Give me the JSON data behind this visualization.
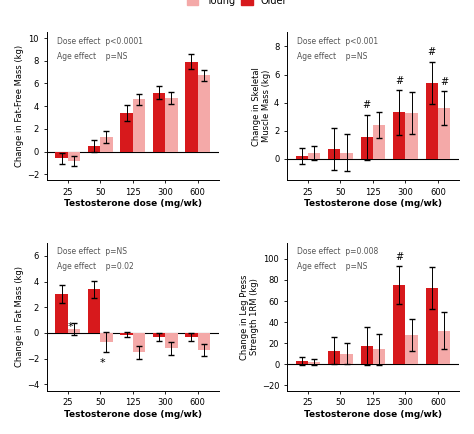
{
  "doses": [
    25,
    50,
    125,
    300,
    600
  ],
  "x_positions": [
    0,
    1,
    2,
    3,
    4
  ],
  "color_older": "#d7191c",
  "color_young": "#f4a9a8",
  "bar_width": 0.38,
  "panel1": {
    "ylabel": "Change in Fat-Free Mass (kg)",
    "xlabel": "Testosterone dose (mg/wk)",
    "ylim": [
      -2.5,
      10.5
    ],
    "yticks": [
      -2,
      0,
      2,
      4,
      6,
      8,
      10
    ],
    "annotation_line1": "Dose effect  p<0.0001",
    "annotation_line2": "Age effect    p=NS",
    "older_means": [
      -0.6,
      0.5,
      3.4,
      5.2,
      7.9
    ],
    "older_errors": [
      0.5,
      0.5,
      0.7,
      0.55,
      0.65
    ],
    "young_means": [
      -0.8,
      1.3,
      4.6,
      4.7,
      6.7
    ],
    "young_errors": [
      0.45,
      0.55,
      0.5,
      0.55,
      0.5
    ],
    "hash_older": [],
    "hash_young": [],
    "star_older": [],
    "star_young": []
  },
  "panel2": {
    "ylabel": "Change in Skeletal\nMuscle Mass (kg)",
    "xlabel": "Testosterone dose (mg/wk)",
    "ylim": [
      -1.5,
      9
    ],
    "yticks": [
      0,
      2,
      4,
      6,
      8
    ],
    "annotation_line1": "Dose effect  p<0.001",
    "annotation_line2": "Age effect    p=NS",
    "older_means": [
      0.2,
      0.7,
      1.55,
      3.3,
      5.4
    ],
    "older_errors": [
      0.6,
      1.5,
      1.6,
      1.6,
      1.5
    ],
    "young_means": [
      0.4,
      0.45,
      2.4,
      3.25,
      3.6
    ],
    "young_errors": [
      0.5,
      1.3,
      0.9,
      1.5,
      1.2
    ],
    "hash_older": [
      2,
      3,
      4
    ],
    "hash_young": [
      4
    ],
    "star_older": [],
    "star_young": []
  },
  "panel3": {
    "ylabel": "Change in Fat Mass (kg)",
    "xlabel": "Testosterone dose (mg/wk)",
    "ylim": [
      -4.5,
      7.0
    ],
    "yticks": [
      -4,
      -2,
      0,
      2,
      4,
      6
    ],
    "annotation_line1": "Dose effect  p=NS",
    "annotation_line2": "Age effect    p=0.02",
    "older_means": [
      3.0,
      3.4,
      -0.15,
      -0.35,
      -0.35
    ],
    "older_errors": [
      0.7,
      0.65,
      0.2,
      0.3,
      0.3
    ],
    "young_means": [
      0.3,
      -0.7,
      -1.5,
      -1.2,
      -1.35
    ],
    "young_errors": [
      0.5,
      0.8,
      0.5,
      0.5,
      0.45
    ],
    "hash_older": [],
    "hash_young": [],
    "star_older": [
      0
    ],
    "star_young": [
      1
    ]
  },
  "panel4": {
    "ylabel": "Change in Leg Press\nStrength 1RM (kg)",
    "xlabel": "Testosterone dose (mg/wk)",
    "ylim": [
      -25,
      115
    ],
    "yticks": [
      -20,
      0,
      20,
      40,
      60,
      80,
      100
    ],
    "annotation_line1": "Dose effect  p=0.008",
    "annotation_line2": "Age effect    p=NS",
    "older_means": [
      3,
      13,
      17,
      75,
      72
    ],
    "older_errors": [
      4,
      13,
      18,
      18,
      20
    ],
    "young_means": [
      2,
      10,
      14,
      28,
      32
    ],
    "young_errors": [
      3,
      10,
      15,
      15,
      18
    ],
    "hash_older": [
      3
    ],
    "hash_young": [],
    "star_older": [],
    "star_young": []
  }
}
